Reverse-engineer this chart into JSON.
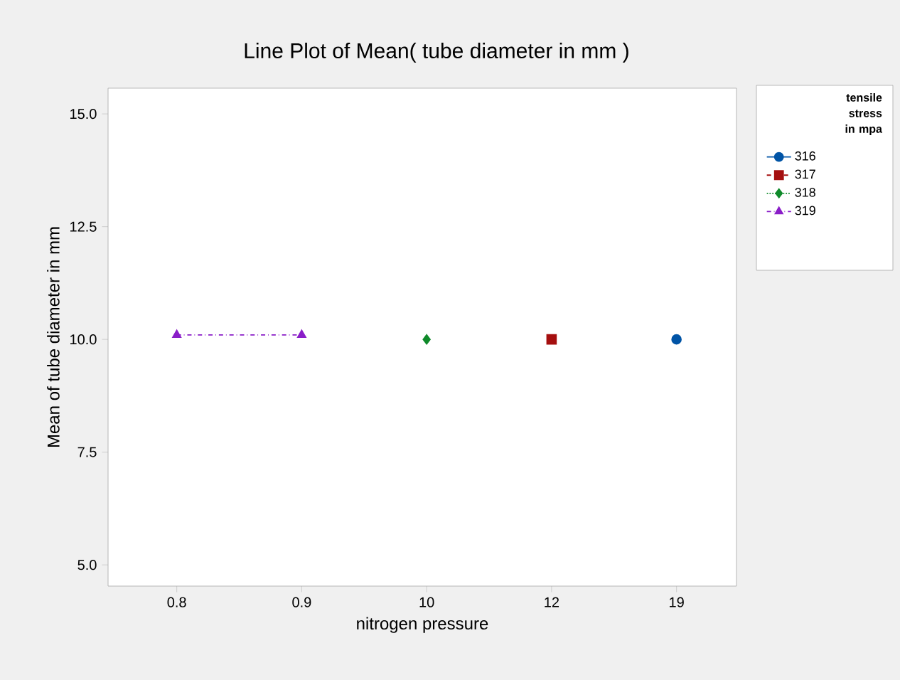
{
  "chart_data": {
    "type": "line",
    "title": "Line Plot of Mean( tube diameter in mm )",
    "xlabel": "nitrogen pressure",
    "ylabel": "Mean of tube diameter in mm",
    "legend_title": "tensile stress in mpa",
    "categories": [
      "0.8",
      "0.9",
      "10",
      "12",
      "19"
    ],
    "ylim": [
      4.53,
      15.57
    ],
    "yticks": [
      {
        "value": 5,
        "label": "5.0"
      },
      {
        "value": 7.5,
        "label": "7.5"
      },
      {
        "value": 10,
        "label": "10.0"
      },
      {
        "value": 12.5,
        "label": "12.5"
      },
      {
        "value": 15,
        "label": "15.0"
      }
    ],
    "legend": "right",
    "grid": false,
    "series": [
      {
        "name": "316",
        "color": "#0054a6",
        "marker": "circle",
        "line_style": "solid",
        "values": [
          null,
          null,
          null,
          null,
          10.0
        ]
      },
      {
        "name": "317",
        "color": "#a50f0f",
        "marker": "square",
        "line_style": "dashed",
        "values": [
          null,
          null,
          null,
          10.0,
          null
        ]
      },
      {
        "name": "318",
        "color": "#0f8a2a",
        "marker": "diamond",
        "line_style": "dotted",
        "values": [
          null,
          null,
          10.0,
          null,
          null
        ]
      },
      {
        "name": "319",
        "color": "#8a1ec8",
        "marker": "triangle",
        "line_style": "dashdot",
        "values": [
          10.1,
          10.1,
          null,
          null,
          null
        ]
      }
    ]
  }
}
